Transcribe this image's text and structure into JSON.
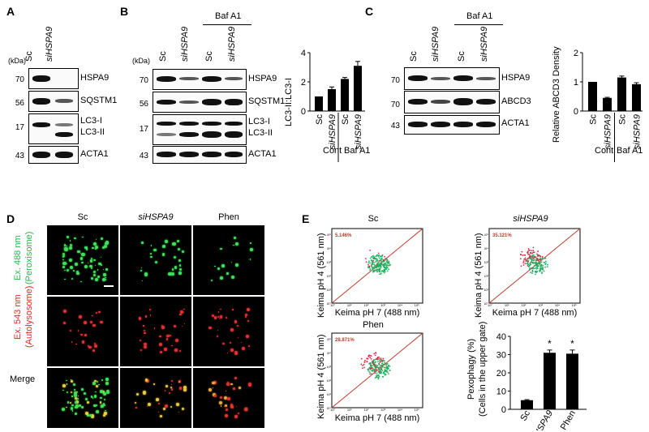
{
  "panels": {
    "A": "A",
    "B": "B",
    "C": "C",
    "D": "D",
    "E": "E"
  },
  "kda": "(kDa)",
  "panelA": {
    "lanes": [
      "Sc",
      "siHSPA9"
    ],
    "rows": [
      {
        "mw": "70",
        "name": "HSPA9"
      },
      {
        "mw": "56",
        "name": "SQSTM1"
      },
      {
        "mw": "17",
        "name": "LC3-I"
      },
      {
        "mw": "",
        "name": "LC3-II"
      },
      {
        "mw": "43",
        "name": "ACTA1"
      }
    ]
  },
  "panelB": {
    "treatment": "Baf A1",
    "lanes": [
      "Sc",
      "siHSPA9",
      "Sc",
      "siHSPA9"
    ],
    "rows": [
      {
        "mw": "70",
        "name": "HSPA9"
      },
      {
        "mw": "56",
        "name": "SQSTM1"
      },
      {
        "mw": "17",
        "name": "LC3-I"
      },
      {
        "mw": "",
        "name": "LC3-II"
      },
      {
        "mw": "43",
        "name": "ACTA1"
      }
    ]
  },
  "panelC": {
    "treatment": "Baf A1",
    "lanes": [
      "Sc",
      "siHSPA9",
      "Sc",
      "siHSPA9"
    ],
    "rows": [
      {
        "mw": "70",
        "name": "HSPA9"
      },
      {
        "mw": "70",
        "name": "ABCD3"
      },
      {
        "mw": "43",
        "name": "ACTA1"
      }
    ]
  },
  "panelD": {
    "cols": [
      "Sc",
      "siHSPA9",
      "Phen"
    ],
    "rows": [
      {
        "label1": "Ex. 488 nm",
        "label2": "(Peroxisome)",
        "color": "#2bb24c"
      },
      {
        "label1": "Ex. 543 nm",
        "label2": "(Autolysosome)",
        "color": "#e0262a"
      },
      {
        "label1": "Merge",
        "label2": "",
        "color": "#000000"
      }
    ]
  },
  "panelE": {
    "plots": [
      {
        "title": "Sc",
        "pct": "5.146%"
      },
      {
        "title": "siHSPA9",
        "pct": "35.121%"
      },
      {
        "title": "Phen",
        "pct": "28.871%"
      }
    ],
    "xlabel": "Keima pH 7 (488 nm)",
    "ylabel": "Keima pH 4 (561 nm)",
    "ticks": [
      "10°",
      "10¹",
      "10²",
      "10³",
      "10⁴",
      "10⁵"
    ]
  },
  "chart_data": [
    {
      "type": "bar",
      "panel": "B",
      "categories": [
        "Sc",
        "siHSPA9",
        "Sc",
        "siHSPA9"
      ],
      "groups": [
        "Cont",
        "Cont",
        "Baf A1",
        "Baf A1"
      ],
      "values": [
        1.0,
        1.5,
        2.2,
        3.1
      ],
      "errors": [
        0.0,
        0.15,
        0.1,
        0.3
      ],
      "ylabel": "LC3-II:LC3-I",
      "ylim": [
        0,
        4
      ],
      "yticks": [
        "0",
        "2",
        "4"
      ],
      "xgroup_labels": [
        "Cont",
        "Baf A1"
      ]
    },
    {
      "type": "bar",
      "panel": "C",
      "categories": [
        "Sc",
        "siHSPA9",
        "Sc",
        "siHSPA9"
      ],
      "groups": [
        "Cont",
        "Cont",
        "Baf A1",
        "Baf A1"
      ],
      "values": [
        1.0,
        0.45,
        1.15,
        0.92
      ],
      "errors": [
        0.0,
        0.02,
        0.05,
        0.05
      ],
      "ylabel": "Relative ABCD3 Density",
      "ylim": [
        0,
        2
      ],
      "yticks": [
        "0",
        "1",
        "2"
      ],
      "xgroup_labels": [
        "Cont",
        "Baf A1"
      ]
    },
    {
      "type": "bar",
      "panel": "E",
      "categories": [
        "Sc",
        "siHSPA9",
        "Phen"
      ],
      "values": [
        5.0,
        31.0,
        30.5
      ],
      "errors": [
        0.3,
        1.5,
        2.0
      ],
      "significance": [
        "",
        "*",
        "*"
      ],
      "ylabel": "Pexophagy (%)",
      "ylabel2": "(Cells in the upper gate)",
      "ylim": [
        0,
        40
      ],
      "yticks": [
        "0",
        "10",
        "20",
        "30",
        "40"
      ]
    }
  ]
}
